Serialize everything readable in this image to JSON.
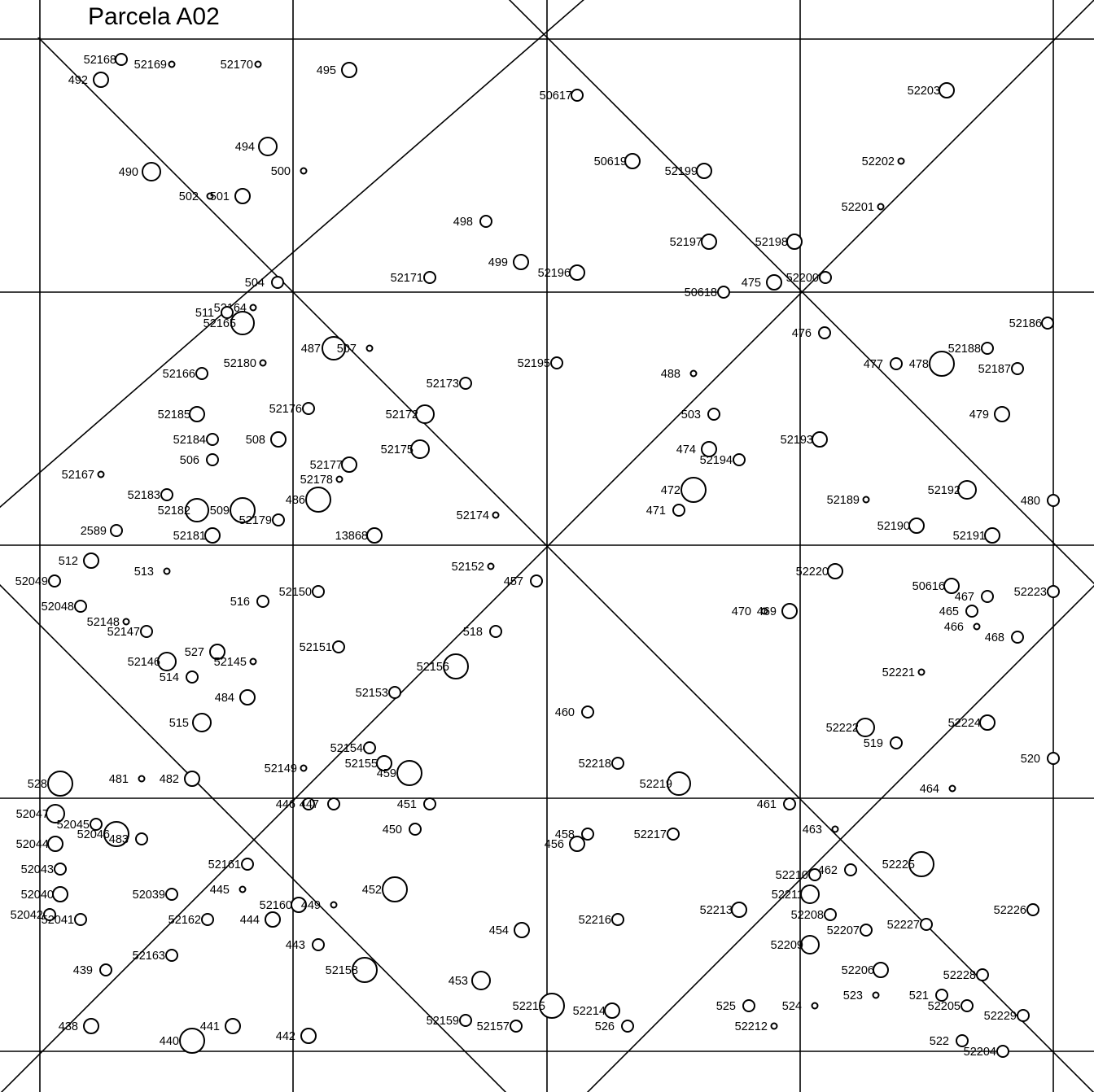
{
  "title": "Parcela  A02",
  "trees": [
    {
      "id": "52168",
      "r": 7
    },
    {
      "id": "52169",
      "r": 3.5
    },
    {
      "id": "52170",
      "r": 3.5
    },
    {
      "id": "492",
      "r": 9
    },
    {
      "id": "495",
      "r": 9
    },
    {
      "id": "50617",
      "r": 7
    },
    {
      "id": "52203",
      "r": 9
    },
    {
      "id": "494",
      "r": 11
    },
    {
      "id": "490",
      "r": 11
    },
    {
      "id": "500",
      "r": 3.5
    },
    {
      "id": "50619",
      "r": 9
    },
    {
      "id": "52199",
      "r": 9
    },
    {
      "id": "52202",
      "r": 3.5
    },
    {
      "id": "502",
      "r": 3.5
    },
    {
      "id": "501",
      "r": 9
    },
    {
      "id": "52201",
      "r": 3.5
    },
    {
      "id": "498",
      "r": 7
    },
    {
      "id": "52197",
      "r": 9
    },
    {
      "id": "52198",
      "r": 9
    },
    {
      "id": "499",
      "r": 9
    },
    {
      "id": "52196",
      "r": 9
    },
    {
      "id": "504",
      "r": 7
    },
    {
      "id": "52171",
      "r": 7
    },
    {
      "id": "52200",
      "r": 7
    },
    {
      "id": "475",
      "r": 9
    },
    {
      "id": "50618",
      "r": 7
    },
    {
      "id": "52164",
      "r": 3.5
    },
    {
      "id": "511",
      "r": 7
    },
    {
      "id": "52165",
      "r": 14
    },
    {
      "id": "52186",
      "r": 7
    },
    {
      "id": "476",
      "r": 7
    },
    {
      "id": "487",
      "r": 14
    },
    {
      "id": "507",
      "r": 3.5
    },
    {
      "id": "52188",
      "r": 7
    },
    {
      "id": "477",
      "r": 7
    },
    {
      "id": "478",
      "r": 15
    },
    {
      "id": "52180",
      "r": 3.5
    },
    {
      "id": "52195",
      "r": 7
    },
    {
      "id": "52187",
      "r": 7
    },
    {
      "id": "52166",
      "r": 7
    },
    {
      "id": "488",
      "r": 3.5
    },
    {
      "id": "52173",
      "r": 7
    },
    {
      "id": "52176",
      "r": 7
    },
    {
      "id": "52185",
      "r": 9
    },
    {
      "id": "52172",
      "r": 11
    },
    {
      "id": "503",
      "r": 7
    },
    {
      "id": "479",
      "r": 9
    },
    {
      "id": "52184",
      "r": 7
    },
    {
      "id": "508",
      "r": 9
    },
    {
      "id": "52193",
      "r": 9
    },
    {
      "id": "52175",
      "r": 11
    },
    {
      "id": "474",
      "r": 9
    },
    {
      "id": "506",
      "r": 7
    },
    {
      "id": "52194",
      "r": 7
    },
    {
      "id": "52177",
      "r": 9
    },
    {
      "id": "52167",
      "r": 3.5
    },
    {
      "id": "52178",
      "r": 3.5
    },
    {
      "id": "52192",
      "r": 11
    },
    {
      "id": "472",
      "r": 15
    },
    {
      "id": "52183",
      "r": 7
    },
    {
      "id": "486",
      "r": 15
    },
    {
      "id": "52189",
      "r": 3.5
    },
    {
      "id": "480",
      "r": 7
    },
    {
      "id": "52182",
      "r": 14
    },
    {
      "id": "509",
      "r": 15
    },
    {
      "id": "52174",
      "r": 3.5
    },
    {
      "id": "471",
      "r": 7
    },
    {
      "id": "52179",
      "r": 7
    },
    {
      "id": "52190",
      "r": 9
    },
    {
      "id": "2589",
      "r": 7
    },
    {
      "id": "52181",
      "r": 9
    },
    {
      "id": "13868",
      "r": 9
    },
    {
      "id": "52191",
      "r": 9
    },
    {
      "id": "512",
      "r": 9
    },
    {
      "id": "52152",
      "r": 3.5
    },
    {
      "id": "513",
      "r": 3.5
    },
    {
      "id": "52220",
      "r": 9
    },
    {
      "id": "52049",
      "r": 7
    },
    {
      "id": "457",
      "r": 7
    },
    {
      "id": "50616",
      "r": 9
    },
    {
      "id": "52150",
      "r": 7
    },
    {
      "id": "467",
      "r": 7
    },
    {
      "id": "52223",
      "r": 7
    },
    {
      "id": "516",
      "r": 7
    },
    {
      "id": "52048",
      "r": 7
    },
    {
      "id": "470",
      "r": 3.5
    },
    {
      "id": "469",
      "r": 9
    },
    {
      "id": "465",
      "r": 7
    },
    {
      "id": "52148",
      "r": 3.5
    },
    {
      "id": "466",
      "r": 3.5
    },
    {
      "id": "52147",
      "r": 7
    },
    {
      "id": "518",
      "r": 7
    },
    {
      "id": "468",
      "r": 7
    },
    {
      "id": "52151",
      "r": 7
    },
    {
      "id": "527",
      "r": 9
    },
    {
      "id": "52146",
      "r": 11
    },
    {
      "id": "52145",
      "r": 3.5
    },
    {
      "id": "52156",
      "r": 15
    },
    {
      "id": "514",
      "r": 7
    },
    {
      "id": "52221",
      "r": 3.5
    },
    {
      "id": "52153",
      "r": 7
    },
    {
      "id": "484",
      "r": 9
    },
    {
      "id": "460",
      "r": 7
    },
    {
      "id": "515",
      "r": 11
    },
    {
      "id": "52224",
      "r": 9
    },
    {
      "id": "52222",
      "r": 11
    },
    {
      "id": "519",
      "r": 7
    },
    {
      "id": "52154",
      "r": 7
    },
    {
      "id": "52155",
      "r": 9
    },
    {
      "id": "459",
      "r": 15
    },
    {
      "id": "52218",
      "r": 7
    },
    {
      "id": "52149",
      "r": 3.5
    },
    {
      "id": "520",
      "r": 7
    },
    {
      "id": "52219",
      "r": 14
    },
    {
      "id": "528",
      "r": 15
    },
    {
      "id": "481",
      "r": 3.5
    },
    {
      "id": "482",
      "r": 9
    },
    {
      "id": "464",
      "r": 3.5
    },
    {
      "id": "446",
      "r": 7
    },
    {
      "id": "447",
      "r": 7
    },
    {
      "id": "451",
      "r": 7
    },
    {
      "id": "461",
      "r": 7
    },
    {
      "id": "52047",
      "r": 11
    },
    {
      "id": "52045",
      "r": 7
    },
    {
      "id": "52046",
      "r": 15
    },
    {
      "id": "483",
      "r": 7
    },
    {
      "id": "463",
      "r": 3.5
    },
    {
      "id": "450",
      "r": 7
    },
    {
      "id": "458",
      "r": 7
    },
    {
      "id": "456",
      "r": 9
    },
    {
      "id": "52217",
      "r": 7
    },
    {
      "id": "52044",
      "r": 9
    },
    {
      "id": "52225",
      "r": 15
    },
    {
      "id": "52161",
      "r": 7
    },
    {
      "id": "52043",
      "r": 7
    },
    {
      "id": "52210",
      "r": 7
    },
    {
      "id": "462",
      "r": 7
    },
    {
      "id": "52040",
      "r": 9
    },
    {
      "id": "52039",
      "r": 7
    },
    {
      "id": "445",
      "r": 3.5
    },
    {
      "id": "452",
      "r": 15
    },
    {
      "id": "52211",
      "r": 11
    },
    {
      "id": "52160",
      "r": 9
    },
    {
      "id": "449",
      "r": 3.5
    },
    {
      "id": "52213",
      "r": 9
    },
    {
      "id": "52226",
      "r": 7
    },
    {
      "id": "52042",
      "r": 7
    },
    {
      "id": "52041",
      "r": 7
    },
    {
      "id": "52162",
      "r": 7
    },
    {
      "id": "444",
      "r": 9
    },
    {
      "id": "52216",
      "r": 7
    },
    {
      "id": "52208",
      "r": 7
    },
    {
      "id": "52227",
      "r": 7
    },
    {
      "id": "454",
      "r": 9
    },
    {
      "id": "52207",
      "r": 7
    },
    {
      "id": "443",
      "r": 7
    },
    {
      "id": "52209",
      "r": 11
    },
    {
      "id": "52163",
      "r": 7
    },
    {
      "id": "52158",
      "r": 15
    },
    {
      "id": "52206",
      "r": 9
    },
    {
      "id": "439",
      "r": 7
    },
    {
      "id": "52228",
      "r": 7
    },
    {
      "id": "453",
      "r": 11
    },
    {
      "id": "523",
      "r": 3.5
    },
    {
      "id": "521",
      "r": 7
    },
    {
      "id": "52215",
      "r": 15
    },
    {
      "id": "525",
      "r": 7
    },
    {
      "id": "524",
      "r": 3.5
    },
    {
      "id": "52205",
      "r": 7
    },
    {
      "id": "52214",
      "r": 9
    },
    {
      "id": "52229",
      "r": 7
    },
    {
      "id": "438",
      "r": 9
    },
    {
      "id": "441",
      "r": 9
    },
    {
      "id": "52159",
      "r": 7
    },
    {
      "id": "52157",
      "r": 7
    },
    {
      "id": "526",
      "r": 7
    },
    {
      "id": "52212",
      "r": 3.5
    },
    {
      "id": "440",
      "r": 15
    },
    {
      "id": "442",
      "r": 9
    },
    {
      "id": "522",
      "r": 7
    },
    {
      "id": "52204",
      "r": 7
    }
  ]
}
